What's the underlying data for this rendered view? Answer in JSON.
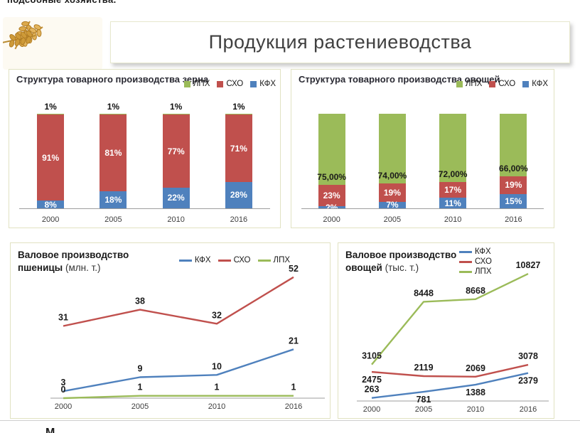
{
  "page": {
    "top_cut_text": "подсобные хозяйства.",
    "bottom_cut_text": "М"
  },
  "header": {
    "title": "Продукция растениеводства",
    "logo": "wheat-ears-photo"
  },
  "colors": {
    "lph_green": "#9BBB59",
    "sho_red": "#C0504D",
    "kfh_blue": "#4F81BD",
    "panel_border": "#E1E2C2",
    "axis_gray": "#9e9e9e"
  },
  "chart_data": [
    {
      "id": "grain_structure",
      "type": "bar",
      "stacked": true,
      "percent": true,
      "title": "Структура товарного производства зерна",
      "legend": [
        "ЛПХ",
        "СХО",
        "КФХ"
      ],
      "legend_position": "top-right-horizontal",
      "categories": [
        "2000",
        "2005",
        "2010",
        "2016"
      ],
      "ylim": [
        0,
        100
      ],
      "series": [
        {
          "name": "КФХ",
          "color": "#4F81BD",
          "values": [
            8,
            18,
            22,
            28
          ],
          "labels": [
            "8%",
            "18%",
            "22%",
            "28%"
          ],
          "label_color": "#FFFFFF"
        },
        {
          "name": "СХО",
          "color": "#C0504D",
          "values": [
            91,
            81,
            77,
            71
          ],
          "labels": [
            "91%",
            "81%",
            "77%",
            "71%"
          ],
          "label_color": "#FFFFFF"
        },
        {
          "name": "ЛПХ",
          "color": "#9BBB59",
          "values": [
            1,
            1,
            1,
            1
          ],
          "labels": [
            "1%",
            "1%",
            "1%",
            "1%"
          ],
          "label_color": "#111111",
          "label_placement": "above"
        }
      ]
    },
    {
      "id": "veg_structure",
      "type": "bar",
      "stacked": true,
      "percent": true,
      "title": "Структура товарного производства овощей",
      "legend": [
        "ЛПХ",
        "СХО",
        "КФХ"
      ],
      "legend_position": "top-right-horizontal",
      "categories": [
        "2000",
        "2005",
        "2010",
        "2016"
      ],
      "ylim": [
        0,
        100
      ],
      "series": [
        {
          "name": "КФХ",
          "color": "#4F81BD",
          "values": [
            2,
            7,
            11,
            15
          ],
          "labels": [
            "2%",
            "7%",
            "11%",
            "15%"
          ],
          "label_color": "#FFFFFF"
        },
        {
          "name": "СХО",
          "color": "#C0504D",
          "values": [
            23,
            19,
            17,
            19
          ],
          "labels": [
            "23%",
            "19%",
            "17%",
            "19%"
          ],
          "label_color": "#FFFFFF"
        },
        {
          "name": "ЛПХ",
          "color": "#9BBB59",
          "values": [
            75,
            74,
            72,
            66
          ],
          "labels": [
            "75,00%",
            "74,00%",
            "72,00%",
            "66,00%"
          ],
          "label_color": "#1a1a1a",
          "label_placement": "inside-bottom"
        }
      ]
    },
    {
      "id": "wheat_gross",
      "type": "line",
      "title": "Валовое производство пшеницы",
      "unit": "(млн. т.)",
      "legend": [
        "КФХ",
        "СХО",
        "ЛПХ"
      ],
      "legend_position": "top-right-horizontal",
      "categories": [
        "2000",
        "2005",
        "2010",
        "2016"
      ],
      "ylim": [
        0,
        55
      ],
      "series": [
        {
          "name": "КФХ",
          "color": "#4F81BD",
          "values": [
            3,
            9,
            10,
            21
          ],
          "label_positions": [
            "above",
            "above",
            "above",
            "above"
          ]
        },
        {
          "name": "СХО",
          "color": "#C0504D",
          "values": [
            31,
            38,
            32,
            52
          ],
          "label_positions": [
            "above",
            "above",
            "above",
            "above"
          ]
        },
        {
          "name": "ЛПХ",
          "color": "#9BBB59",
          "values": [
            0,
            1,
            1,
            1
          ],
          "label_positions": [
            "above",
            "above",
            "above",
            "above"
          ]
        }
      ]
    },
    {
      "id": "veg_gross",
      "type": "line",
      "title": "Валовое производство овощей",
      "unit": "(тыс. т.)",
      "legend": [
        "КФХ",
        "СХО",
        "ЛПХ"
      ],
      "legend_position": "top-middle-vertical",
      "categories": [
        "2000",
        "2005",
        "2010",
        "2016"
      ],
      "ylim": [
        0,
        11500
      ],
      "series": [
        {
          "name": "КФХ",
          "color": "#4F81BD",
          "values": [
            263,
            781,
            1388,
            2379
          ],
          "label_positions": [
            "above",
            "below",
            "below",
            "below"
          ]
        },
        {
          "name": "СХО",
          "color": "#C0504D",
          "values": [
            2475,
            2119,
            2069,
            3078
          ],
          "label_positions": [
            "below",
            "above",
            "above",
            "above"
          ]
        },
        {
          "name": "ЛПХ",
          "color": "#9BBB59",
          "values": [
            3105,
            8448,
            8668,
            10827
          ],
          "label_positions": [
            "above",
            "above",
            "above",
            "above"
          ]
        }
      ]
    }
  ]
}
